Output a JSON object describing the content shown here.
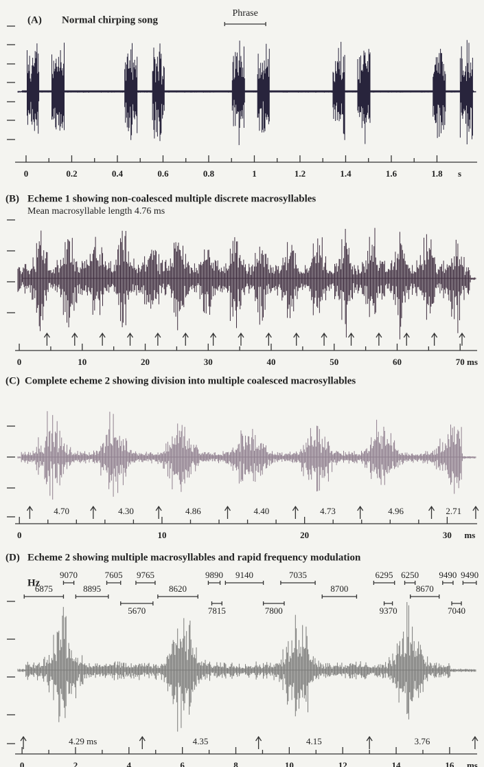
{
  "panels": [
    {
      "label": "(A)",
      "title": "Normal chirping song",
      "phrase": {
        "label": "Phrase",
        "start": 0.87,
        "end": 1.05
      },
      "xlim": [
        -0.048,
        1.976
      ],
      "xticks": [
        0,
        0.2,
        0.4,
        0.6,
        0.8,
        1.0,
        1.2,
        1.4,
        1.6,
        1.8
      ],
      "unit": "s",
      "chirps": [
        0.03,
        0.14,
        0.46,
        0.58,
        0.93,
        1.04,
        1.37,
        1.48,
        1.81,
        1.93
      ]
    },
    {
      "label": "(B)",
      "title": "Echeme 1 showing non-coalesced  multiple discrete macrosyllables",
      "subtitle": "Mean macrosyllable length 4.76 ms",
      "xlim": [
        -0.66,
        72.7
      ],
      "xticks": [
        0,
        10,
        20,
        30,
        40,
        50,
        60,
        70
      ],
      "unit": "ms",
      "arrows": [
        4.4,
        8.8,
        13.2,
        17.6,
        22.0,
        26.4,
        30.8,
        35.2,
        39.6,
        44.0,
        48.4,
        52.7,
        57.1,
        61.5,
        65.9,
        70.3
      ]
    },
    {
      "label": "(C)",
      "title": "Complete echeme 2 showing division into multiple coalesced macrosyllables",
      "xlim": [
        -0.3,
        32.1
      ],
      "xticks": [
        0,
        10,
        20,
        30
      ],
      "unit": "ms",
      "arrows": [
        0.73,
        5.18,
        9.77,
        14.6,
        19.36,
        23.9,
        28.9,
        32.0
      ],
      "intervals": [
        "4.70",
        "4.30",
        "4.86",
        "4.40",
        "4.73",
        "4.96",
        "2.71"
      ]
    },
    {
      "label": "(D)",
      "title": "Echeme 2 showing  multiple macrosyllables and rapid frequency modulation",
      "freq_unit": "Hz",
      "frequencies": [
        {
          "label": "6875",
          "start": 0.08,
          "end": 1.55
        },
        {
          "label": "9070",
          "start": 1.55,
          "end": 1.94
        },
        {
          "label": "8895",
          "start": 2.01,
          "end": 3.23
        },
        {
          "label": "7605",
          "start": 3.17,
          "end": 3.69
        },
        {
          "label": "5670",
          "start": 3.69,
          "end": 4.9
        },
        {
          "label": "9765",
          "start": 4.26,
          "end": 4.98
        },
        {
          "label": "8620",
          "start": 5.08,
          "end": 6.58
        },
        {
          "label": "9890",
          "start": 6.97,
          "end": 7.41
        },
        {
          "label": "7815",
          "start": 7.1,
          "end": 7.48
        },
        {
          "label": "9140",
          "start": 7.61,
          "end": 9.03
        },
        {
          "label": "7800",
          "start": 9.03,
          "end": 9.81
        },
        {
          "label": "7035",
          "start": 9.68,
          "end": 10.97
        },
        {
          "label": "8700",
          "start": 11.23,
          "end": 12.52
        },
        {
          "label": "6295",
          "start": 13.16,
          "end": 13.94
        },
        {
          "label": "9370",
          "start": 13.55,
          "end": 13.86
        },
        {
          "label": "6250",
          "start": 14.32,
          "end": 14.71
        },
        {
          "label": "8670",
          "start": 14.53,
          "end": 15.61
        },
        {
          "label": "9490",
          "start": 15.74,
          "end": 16.13
        },
        {
          "label": "7040",
          "start": 16.08,
          "end": 16.44
        },
        {
          "label": "9490",
          "start": 16.5,
          "end": 17.0
        }
      ],
      "xlim": [
        -0.26,
        17.03
      ],
      "xticks": [
        0,
        2,
        4,
        6,
        8,
        10,
        12,
        14,
        16
      ],
      "unit": "ms",
      "arrows": [
        0.05,
        4.5,
        8.85,
        13.0,
        16.95
      ],
      "intervals": [
        "4.29 ms",
        "4.35",
        "4.15",
        "3.76"
      ]
    }
  ]
}
